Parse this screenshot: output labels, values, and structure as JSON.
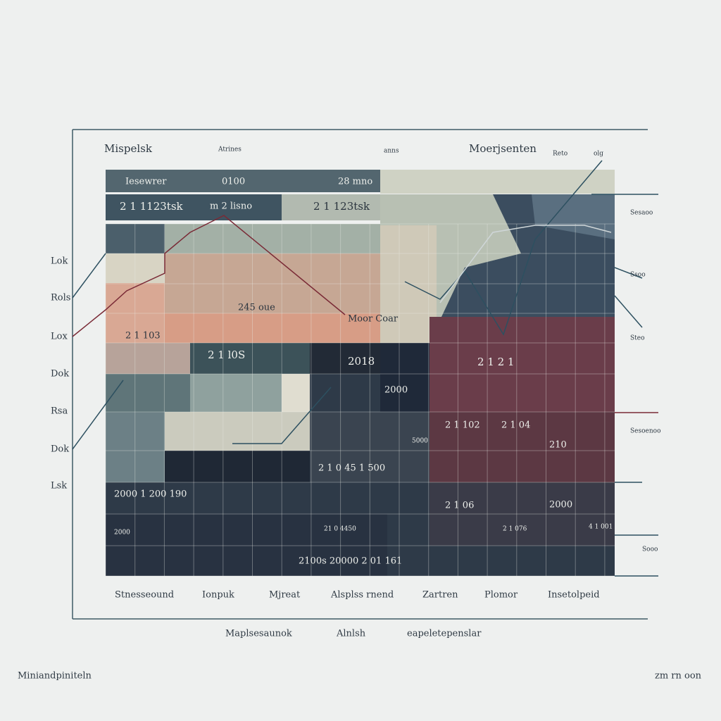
{
  "header": {
    "title": "Mispelsk",
    "subtitle": "Atrines",
    "small_labels": [
      "anns",
      "Reto",
      "olg"
    ],
    "right_title": "Moerjsenten"
  },
  "row_labels": [
    "Lok",
    "Rols",
    "Lox",
    "Dok",
    "Rsa",
    "Dok",
    "Lsk"
  ],
  "side_labels": [
    "Sesaoo",
    "Ssoo",
    "Steo",
    "Sesoenoo",
    "Sooo"
  ],
  "cells": [
    "Iesewrer",
    "0100",
    "28 mno",
    "2 1 1123tsk",
    "m 2 lisno",
    "2 1 123tsk",
    "2 1 103",
    "245 oue",
    "Moor Coar",
    "2 1 l0S",
    "2018",
    "2 1 2 1",
    "2000",
    "2 1 102",
    "2 1 04",
    "210",
    "2 1 0 45 1 500",
    "2000 1 200 190",
    "2 1 06",
    "2000",
    "21 0 4450",
    "2 1 076",
    "4 1 001",
    "2100s 20000 2 01 161",
    "5000",
    "2000"
  ],
  "column_labels": [
    "Stnesseound",
    "Ionpuk",
    "Mjreat",
    "Alsplss rnend",
    "Zartren",
    "Plomor",
    "Insetolpeid"
  ],
  "axis_labels": [
    "Maplsesaunok",
    "Alnlsh",
    "eapeletepenslar"
  ],
  "footer": {
    "left": "Miniandpiniteln",
    "right": "zm rn oon"
  }
}
